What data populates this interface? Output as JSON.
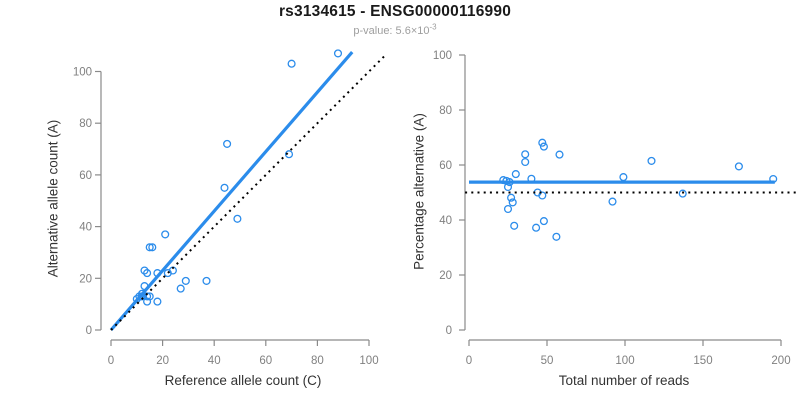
{
  "title": "rs3134615 - ENSG00000116990",
  "subtitle": {
    "text": "p-value: 5.6×10",
    "exponent": "-3"
  },
  "colors": {
    "accent": "#2B8CEB",
    "axis": "#8A8A8A",
    "tick_label": "#808080",
    "axis_title": "#333333",
    "title": "#1A1A1A",
    "subtitle": "#9E9E9E",
    "reference": "#000000"
  },
  "chart_data": [
    {
      "name": "allele-counts",
      "type": "scatter",
      "xlabel": "Reference allele count (C)",
      "ylabel": "Alternative allele count (A)",
      "xlim": [
        0,
        100
      ],
      "ylim": [
        0,
        100
      ],
      "xticks": [
        0,
        20,
        40,
        60,
        80,
        100
      ],
      "yticks": [
        0,
        20,
        40,
        60,
        80,
        100
      ],
      "grid": false,
      "marker": "open-circle",
      "points": [
        [
          10,
          12
        ],
        [
          11,
          13
        ],
        [
          12,
          13
        ],
        [
          12,
          14
        ],
        [
          14,
          13
        ],
        [
          15,
          13
        ],
        [
          14,
          11
        ],
        [
          18,
          11
        ],
        [
          13,
          17
        ],
        [
          13,
          23
        ],
        [
          14,
          22
        ],
        [
          18,
          22
        ],
        [
          15,
          32
        ],
        [
          16,
          32
        ],
        [
          21,
          37
        ],
        [
          22,
          22
        ],
        [
          24,
          23
        ],
        [
          27,
          16
        ],
        [
          29,
          19
        ],
        [
          37,
          19
        ],
        [
          44,
          55
        ],
        [
          45,
          72
        ],
        [
          49,
          43
        ],
        [
          69,
          68
        ],
        [
          70,
          103
        ],
        [
          88,
          107
        ]
      ],
      "lines": [
        {
          "name": "fit-line",
          "style": "solid",
          "color": "#2B8CEB",
          "from": [
            0,
            0
          ],
          "to": [
            93.5,
            107.5
          ]
        },
        {
          "name": "identity-line",
          "style": "dotted",
          "color": "#000000",
          "from": [
            0,
            0
          ],
          "to": [
            106.5,
            106.5
          ]
        }
      ]
    },
    {
      "name": "percentage-vs-coverage",
      "type": "scatter",
      "xlabel": "Total number of reads",
      "ylabel": "Percentage alternative (A)",
      "xlim": [
        0,
        200
      ],
      "ylim": [
        0,
        100
      ],
      "xticks": [
        0,
        50,
        100,
        150,
        200
      ],
      "yticks": [
        0,
        20,
        40,
        60,
        80,
        100
      ],
      "grid": false,
      "marker": "open-circle",
      "points": [
        [
          22,
          54.5
        ],
        [
          24,
          54.2
        ],
        [
          25,
          52
        ],
        [
          26,
          53.8
        ],
        [
          27,
          48.1
        ],
        [
          28,
          46.4
        ],
        [
          25,
          44
        ],
        [
          29,
          37.9
        ],
        [
          30,
          56.7
        ],
        [
          36,
          63.9
        ],
        [
          36,
          61.1
        ],
        [
          40,
          55
        ],
        [
          47,
          68.1
        ],
        [
          48,
          66.7
        ],
        [
          58,
          63.8
        ],
        [
          44,
          50
        ],
        [
          47,
          48.9
        ],
        [
          43,
          37.2
        ],
        [
          48,
          39.6
        ],
        [
          56,
          33.9
        ],
        [
          99,
          55.6
        ],
        [
          117,
          61.5
        ],
        [
          92,
          46.7
        ],
        [
          137,
          49.6
        ],
        [
          173,
          59.5
        ],
        [
          195,
          54.9
        ]
      ],
      "lines": [
        {
          "name": "mean-line",
          "style": "solid",
          "color": "#2B8CEB",
          "from": [
            0,
            53.8
          ],
          "to": [
            196,
            53.8
          ]
        },
        {
          "name": "fifty-percent-line",
          "style": "dotted",
          "color": "#000000",
          "from": [
            -2.5,
            50
          ],
          "to": [
            210,
            50
          ]
        }
      ]
    }
  ]
}
